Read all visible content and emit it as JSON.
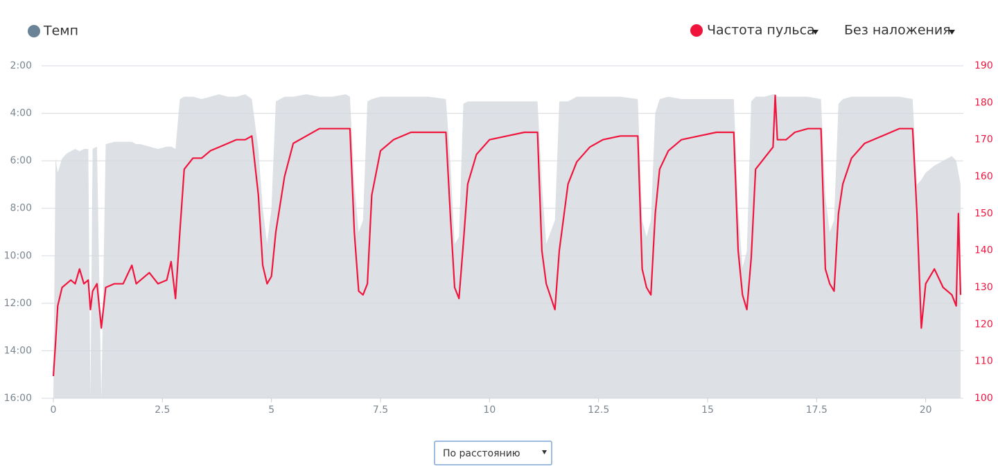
{
  "chart_data": {
    "type": "area-line",
    "overlay_control": "Без наложения",
    "x_mode_control": "По расстоянию",
    "xlim": [
      0,
      20.8
    ],
    "xticks": [
      0,
      2.5,
      5,
      7.5,
      10,
      12.5,
      15,
      17.5,
      20
    ],
    "ylim": [
      16,
      2
    ],
    "yticks": [
      {
        "value": 2,
        "label": "2:00"
      },
      {
        "value": 4,
        "label": "4:00"
      },
      {
        "value": 6,
        "label": "6:00"
      },
      {
        "value": 8,
        "label": "8:00"
      },
      {
        "value": 10,
        "label": "10:00"
      },
      {
        "value": 12,
        "label": "12:00"
      },
      {
        "value": 14,
        "label": "14:00"
      },
      {
        "value": 16,
        "label": "16:00"
      }
    ],
    "y2lim": [
      100,
      190
    ],
    "y2ticks": [
      100,
      110,
      120,
      130,
      140,
      150,
      160,
      170,
      180,
      190
    ],
    "grid": true,
    "x": [
      0,
      0.05,
      0.1,
      0.2,
      0.3,
      0.4,
      0.5,
      0.6,
      0.7,
      0.8,
      0.85,
      0.9,
      1.0,
      1.1,
      1.2,
      1.4,
      1.6,
      1.8,
      1.9,
      2.0,
      2.2,
      2.4,
      2.6,
      2.7,
      2.8,
      2.9,
      3.0,
      3.2,
      3.4,
      3.6,
      3.8,
      4.0,
      4.2,
      4.4,
      4.55,
      4.7,
      4.8,
      4.9,
      5.0,
      5.1,
      5.3,
      5.5,
      5.8,
      6.1,
      6.4,
      6.7,
      6.8,
      6.9,
      7.0,
      7.1,
      7.2,
      7.3,
      7.5,
      7.8,
      8.2,
      8.6,
      9.0,
      9.1,
      9.2,
      9.3,
      9.4,
      9.5,
      9.7,
      10.0,
      10.4,
      10.8,
      11.1,
      11.2,
      11.3,
      11.5,
      11.6,
      11.8,
      12.0,
      12.3,
      12.6,
      13.0,
      13.4,
      13.5,
      13.6,
      13.7,
      13.8,
      13.9,
      14.1,
      14.4,
      14.8,
      15.2,
      15.6,
      15.7,
      15.8,
      15.9,
      16.0,
      16.1,
      16.3,
      16.5,
      16.55,
      16.6,
      16.8,
      17.0,
      17.3,
      17.6,
      17.7,
      17.8,
      17.9,
      18.0,
      18.1,
      18.3,
      18.6,
      19.0,
      19.4,
      19.7,
      19.8,
      19.9,
      20.0,
      20.2,
      20.4,
      20.6,
      20.7,
      20.75,
      20.8
    ],
    "series": [
      {
        "name": "Темп",
        "color": "#6b8396",
        "fill": "#dde0e4",
        "axis": "y",
        "values": [
          16,
          5.9,
          6.5,
          5.9,
          5.7,
          5.6,
          5.5,
          5.6,
          5.5,
          5.5,
          16,
          5.5,
          5.4,
          16,
          5.3,
          5.2,
          5.2,
          5.2,
          5.3,
          5.3,
          5.4,
          5.5,
          5.4,
          5.4,
          5.5,
          3.4,
          3.3,
          3.3,
          3.4,
          3.3,
          3.2,
          3.3,
          3.3,
          3.2,
          3.4,
          5.5,
          8.0,
          9.5,
          8.0,
          3.5,
          3.3,
          3.3,
          3.2,
          3.3,
          3.3,
          3.2,
          3.3,
          7.0,
          9.0,
          8.5,
          3.5,
          3.4,
          3.3,
          3.3,
          3.3,
          3.3,
          3.4,
          6.0,
          9.5,
          9.2,
          3.6,
          3.5,
          3.5,
          3.5,
          3.5,
          3.5,
          3.5,
          7.0,
          9.5,
          8.5,
          3.5,
          3.5,
          3.3,
          3.3,
          3.3,
          3.3,
          3.4,
          8.5,
          9.2,
          8.5,
          4.0,
          3.4,
          3.3,
          3.4,
          3.4,
          3.4,
          3.4,
          8.0,
          10.5,
          9.8,
          3.5,
          3.3,
          3.3,
          3.2,
          3.2,
          3.3,
          3.3,
          3.3,
          3.3,
          3.4,
          7.5,
          9.0,
          8.5,
          3.6,
          3.4,
          3.3,
          3.3,
          3.3,
          3.3,
          3.4,
          7.0,
          6.8,
          6.5,
          6.2,
          6.0,
          5.8,
          6.0,
          6.5,
          7.0
        ]
      },
      {
        "name": "Частота пульса",
        "color": "#f0143c",
        "axis": "y2",
        "values": [
          106,
          115,
          125,
          130,
          131,
          132,
          131,
          135,
          131,
          132,
          124,
          129,
          131,
          119,
          130,
          131,
          131,
          136,
          131,
          132,
          134,
          131,
          132,
          137,
          127,
          145,
          162,
          165,
          165,
          167,
          168,
          169,
          170,
          170,
          171,
          155,
          136,
          131,
          133,
          145,
          160,
          169,
          171,
          173,
          173,
          173,
          173,
          145,
          129,
          128,
          131,
          155,
          167,
          170,
          172,
          172,
          172,
          150,
          130,
          127,
          142,
          158,
          166,
          170,
          171,
          172,
          172,
          140,
          131,
          124,
          140,
          158,
          164,
          168,
          170,
          171,
          171,
          135,
          130,
          128,
          150,
          162,
          167,
          170,
          171,
          172,
          172,
          140,
          128,
          124,
          138,
          162,
          165,
          168,
          182,
          170,
          170,
          172,
          173,
          173,
          135,
          131,
          129,
          150,
          158,
          165,
          169,
          171,
          173,
          173,
          150,
          119,
          131,
          135,
          130,
          128,
          125,
          150,
          128
        ]
      }
    ]
  }
}
